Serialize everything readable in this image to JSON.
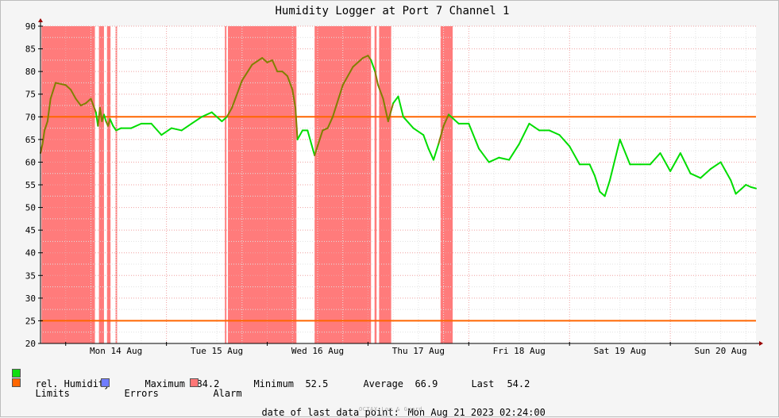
{
  "chart_data": {
    "type": "line",
    "title": "Humidity Logger at Port 7 Channel 1",
    "xlabel": "",
    "ylabel": "",
    "x_ticks": [
      "Mon 14 Aug",
      "Tue 15 Aug",
      "Wed 16 Aug",
      "Thu 17 Aug",
      "Fri 18 Aug",
      "Sat 19 Aug",
      "Sun 20 Aug"
    ],
    "y_ticks": [
      20,
      25,
      30,
      35,
      40,
      45,
      50,
      55,
      60,
      65,
      70,
      75,
      80,
      85,
      90
    ],
    "ylim": [
      20,
      90
    ],
    "x_range_days": [
      -0.25,
      6.85
    ],
    "grid": true,
    "limits": {
      "upper": 70,
      "lower": 25
    },
    "alarm_periods_days": [
      [
        -0.24,
        0.29
      ],
      [
        0.33,
        0.38
      ],
      [
        0.41,
        0.445
      ],
      [
        0.495,
        0.51
      ],
      [
        1.58,
        1.595
      ],
      [
        1.61,
        2.29
      ],
      [
        2.47,
        3.03
      ],
      [
        3.065,
        3.085
      ],
      [
        3.11,
        3.23
      ],
      [
        3.72,
        3.84
      ]
    ],
    "series": [
      {
        "name": "rel. Humidity",
        "color": "#00dd00",
        "alarm_color": "#808000",
        "x_days": [
          -0.25,
          -0.23,
          -0.21,
          -0.18,
          -0.15,
          -0.1,
          0.0,
          0.05,
          0.1,
          0.15,
          0.2,
          0.25,
          0.3,
          0.32,
          0.34,
          0.36,
          0.38,
          0.4,
          0.42,
          0.44,
          0.47,
          0.5,
          0.55,
          0.65,
          0.75,
          0.85,
          0.95,
          1.05,
          1.15,
          1.25,
          1.35,
          1.45,
          1.55,
          1.6,
          1.65,
          1.75,
          1.85,
          1.95,
          2.0,
          2.05,
          2.1,
          2.15,
          2.2,
          2.25,
          2.28,
          2.3,
          2.35,
          2.4,
          2.47,
          2.55,
          2.6,
          2.65,
          2.75,
          2.85,
          2.95,
          3.0,
          3.03,
          3.07,
          3.1,
          3.15,
          3.2,
          3.25,
          3.3,
          3.35,
          3.45,
          3.55,
          3.6,
          3.65,
          3.7,
          3.75,
          3.8,
          3.9,
          4.0,
          4.1,
          4.2,
          4.3,
          4.4,
          4.5,
          4.6,
          4.7,
          4.8,
          4.9,
          5.0,
          5.1,
          5.2,
          5.25,
          5.3,
          5.35,
          5.4,
          5.5,
          5.6,
          5.7,
          5.8,
          5.9,
          6.0,
          6.1,
          6.2,
          6.3,
          6.4,
          6.5,
          6.55,
          6.6,
          6.65,
          6.7,
          6.75,
          6.8,
          6.85
        ],
        "values": [
          62,
          64,
          67,
          69,
          74,
          77.5,
          77,
          76,
          74,
          72.5,
          73,
          74,
          71,
          68,
          72,
          69,
          70.5,
          69,
          68,
          69.5,
          68,
          67,
          67.5,
          67.5,
          68.5,
          68.5,
          66,
          67.5,
          67,
          68.5,
          70,
          71,
          69,
          70,
          72,
          78,
          81.5,
          83,
          82,
          82.5,
          80,
          80,
          79,
          76,
          72,
          65,
          67,
          67,
          61.5,
          67,
          67.5,
          70,
          77,
          81,
          83,
          83.5,
          82.5,
          80,
          77,
          74,
          69,
          73,
          74.5,
          70,
          67.5,
          66,
          63,
          60.5,
          64,
          68,
          70.5,
          68.5,
          68.5,
          63,
          60,
          61,
          60.5,
          64,
          68.5,
          67,
          67,
          66,
          63.5,
          59.5,
          59.5,
          57,
          53.5,
          52.5,
          56,
          65,
          59.5,
          59.5,
          59.5,
          62,
          58,
          62,
          57.5,
          56.5,
          58.5,
          60,
          58,
          56,
          53,
          54,
          55,
          54.5,
          54.2
        ]
      },
      {
        "name": "Limits",
        "color": "#ff6600"
      },
      {
        "name": "Errors",
        "color": "#6f7cff"
      },
      {
        "name": "Alarm",
        "color": "#ff7777"
      }
    ]
  },
  "legend": {
    "humidity_label": "rel. Humidity",
    "maximum_label": "Maximum",
    "maximum_value": "84.2",
    "minimum_label": "Minimum",
    "minimum_value": "52.5",
    "average_label": "Average",
    "average_value": "66.9",
    "last_label": "Last",
    "last_value": "54.2",
    "limits_label": "Limits",
    "errors_label": "Errors",
    "alarm_label": "Alarm",
    "colors": {
      "humidity": "#11dd11",
      "limits": "#ff6600",
      "errors": "#6f7cff",
      "alarm": "#ff7777"
    }
  },
  "footer": {
    "last_point_label": "date of last data point:",
    "last_point_value": "Mon Aug 21 2023 02:24:00",
    "credit": "OCTAX Log & Guard"
  }
}
